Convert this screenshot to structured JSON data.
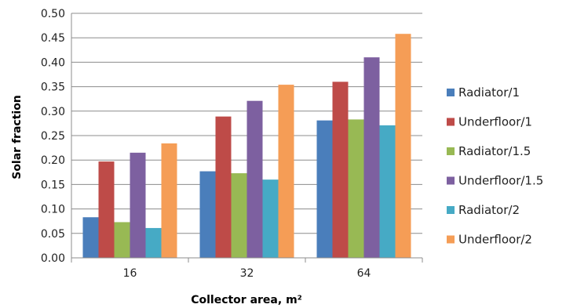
{
  "chart_data": {
    "type": "bar",
    "xlabel": "Collector area, m²",
    "ylabel": "Solar fraction",
    "ylim": [
      0,
      0.5
    ],
    "ytick_step": 0.05,
    "grid": true,
    "legend_position": "right",
    "categories": [
      "16",
      "32",
      "64"
    ],
    "series": [
      {
        "name": "Radiator/1",
        "color": "#4a7ebb",
        "values": [
          0.083,
          0.177,
          0.281
        ]
      },
      {
        "name": "Underfloor/1",
        "color": "#be4b48",
        "values": [
          0.197,
          0.289,
          0.36
        ]
      },
      {
        "name": "Radiator/1.5",
        "color": "#98b954",
        "values": [
          0.073,
          0.173,
          0.283
        ]
      },
      {
        "name": "Underfloor/1.5",
        "color": "#7d60a0",
        "values": [
          0.215,
          0.321,
          0.41
        ]
      },
      {
        "name": "Radiator/2",
        "color": "#46aac5",
        "values": [
          0.061,
          0.16,
          0.271
        ]
      },
      {
        "name": "Underfloor/2",
        "color": "#f59d56",
        "values": [
          0.234,
          0.354,
          0.458
        ]
      }
    ]
  }
}
